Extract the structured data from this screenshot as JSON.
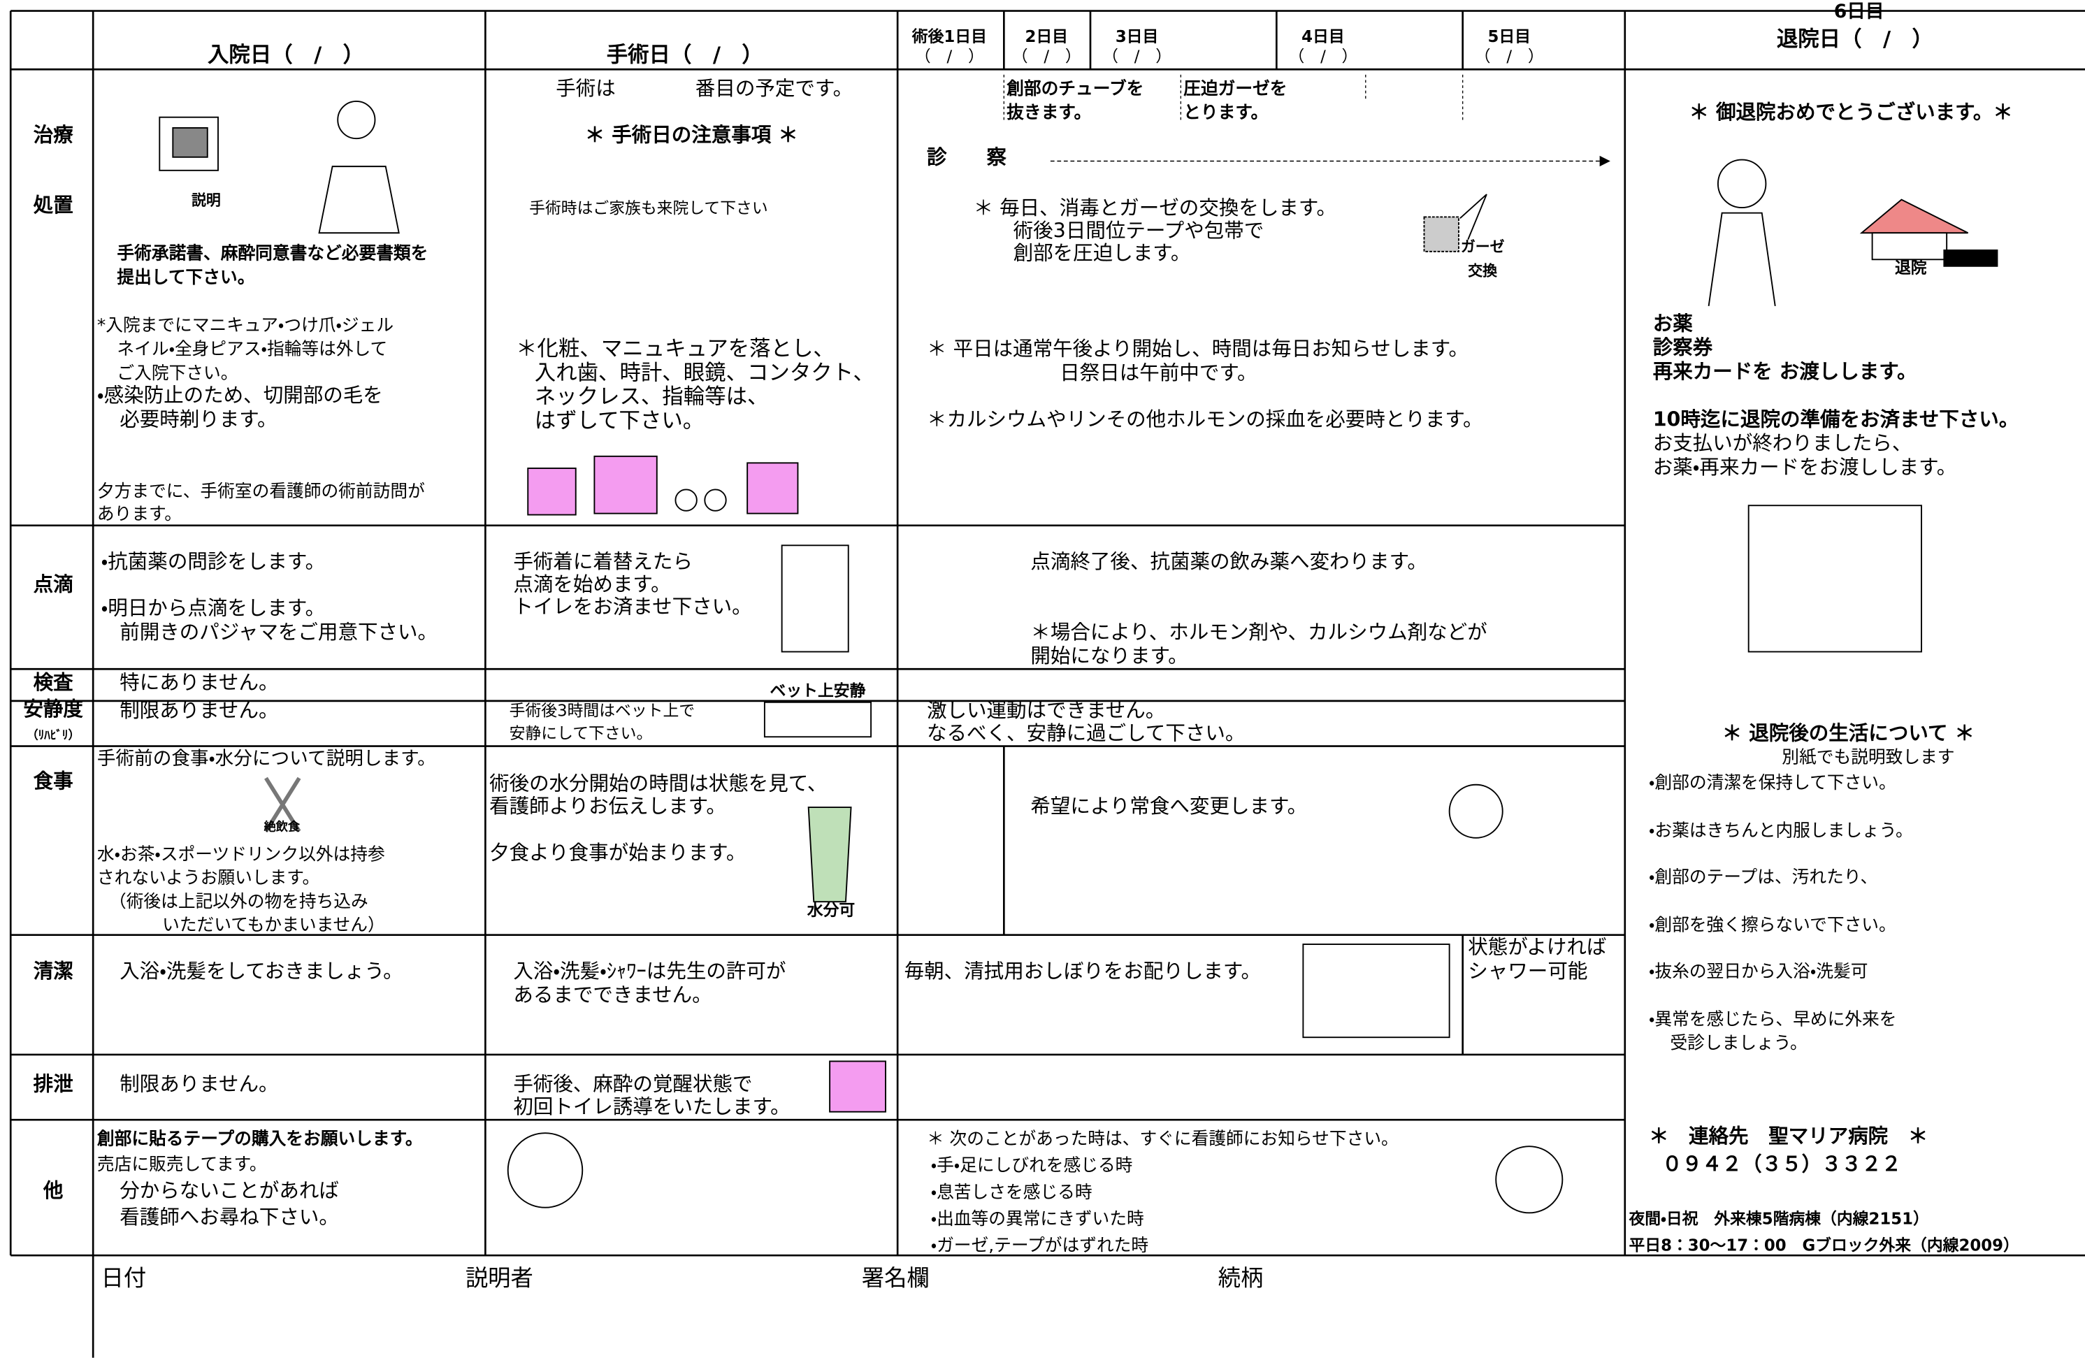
{
  "header": {
    "admission": "入院日（　/　）",
    "surgery": "手術日（　/　）",
    "post_days": [
      {
        "day": "術後1日目",
        "date": "（　/　）"
      },
      {
        "day": "2日目",
        "date": "（　/　）"
      },
      {
        "day": "3日目",
        "date": "（　/　）"
      },
      {
        "day": "4日目",
        "date": "（　/　）"
      },
      {
        "day": "5日目",
        "date": "（　/　）"
      }
    ],
    "day6": "6日目",
    "discharge": "退院日（　/　）"
  },
  "row_labels": {
    "treatment": "治療",
    "procedure": "処置",
    "drip": "点滴",
    "exam": "検査",
    "rest": "安静度",
    "rest_sub": "（ﾘﾊﾋﾞﾘ）",
    "meal": "食事",
    "hygiene": "清潔",
    "excretion": "排泄",
    "other": "他"
  },
  "treatment": {
    "admission_icon": "説明",
    "admission": [
      "手術承諾書、麻酔同意書など必要書類を",
      "提出して下さい。"
    ],
    "admission_nails": [
      "*入院までにマニキュア・つけ爪・ジェル",
      "ネイル・全身ピアス・指輪等は外して",
      "ご入院下さい。"
    ],
    "admission_hair": [
      "・感染防止のため、切開部の毛を",
      "必要時剃ります。"
    ],
    "admission_visit": [
      "夕方までに、手術室の看護師の術前訪問が",
      "あります。"
    ],
    "surgery_order": "手術は　　　　番目の予定です。",
    "surgery_notes_title": "＊ 手術日の注意事項 ＊",
    "surgery_family": "手術時はご家族も来院して下さい",
    "surgery_remove": [
      "＊化粧、マニュキュアを落とし、",
      "入れ歯、時計、眼鏡、コンタクト、",
      "ネックレス、指輪等は、",
      "はずして下さい。"
    ],
    "tube": [
      "創部のチューブを",
      "抜きます。"
    ],
    "gauze_remove": [
      "圧迫ガーゼを",
      "とります。"
    ],
    "exam": "診　　察",
    "daily": [
      "＊ 毎日、消毒とガーゼの交換をします。",
      "術後3日間位テープや包帯で",
      "創部を圧迫します。"
    ],
    "gauze_icon": [
      "ガーゼ",
      "交換"
    ],
    "time": [
      "＊ 平日は通常午後より開始し、時間は毎日お知らせします。",
      "日祭日は午前中です。"
    ],
    "blood": "＊カルシウムやリンその他ホルモンの採血を必要時とります。"
  },
  "discharge": {
    "congrats": "＊ 御退院おめでとうございます。＊",
    "icon": "退院",
    "items": [
      "お薬",
      "診察券",
      "再来カードを お渡しします。"
    ],
    "prepare": "10時迄に退院の準備をお済ませ下さい。",
    "payment": [
      "お支払いが終わりましたら、",
      "お薬・再来カードをお渡しします。"
    ],
    "life_title": "＊ 退院後の生活について ＊",
    "life_sub": "別紙でも説明致します",
    "life": [
      "・創部の清潔を保持して下さい。",
      "・お薬はきちんと内服しましょう。",
      "・創部のテープは、汚れたり、",
      "・創部を強く擦らないで下さい。",
      "・抜糸の翌日から入浴・洗髪可",
      "・異常を感じたら、早めに外来を",
      "受診しましょう。"
    ],
    "contact_title": "＊　連絡先　聖マリア病院　＊",
    "phone": "０９４２（３５）３３２２",
    "night": "夜間・日祝　外来棟5階病棟（内線2151）",
    "weekday": "平日8：30～17：00　Gブロック外来（内線2009）"
  },
  "drip": {
    "admission_1": "・抗菌薬の問診をします。",
    "admission_2": [
      "・明日から点滴をします。",
      "前開きのパジャマをご用意下さい。"
    ],
    "surgery": [
      "手術着に着替えたら",
      "点滴を始めます。",
      "トイレをお済ませ下さい。"
    ],
    "post_1": "点滴終了後、抗菌薬の飲み薬へ変わります。",
    "post_2": [
      "＊場合により、ホルモン剤や、カルシウム剤などが",
      "開始になります。"
    ]
  },
  "exam": {
    "admission": "特にありません。"
  },
  "rest": {
    "admission": "制限ありません。",
    "surgery": [
      "手術後3時間はベット上で",
      "安静にして下さい。"
    ],
    "surgery_icon": "ベット上安静",
    "post": [
      "激しい運動はできません。",
      "なるべく、安静に過ごして下さい。"
    ]
  },
  "meal": {
    "admission_1": "手術前の食事・水分について説明します。",
    "admission_icon": "絶飲食",
    "admission_2": [
      "水・お茶・スポーツドリンク以外は持参",
      "されないようお願いします。",
      "（術後は上記以外の物を持ち込み",
      "いただいてもかまいません）"
    ],
    "surgery_1": [
      "術後の水分開始の時間は状態を見て、",
      "看護師よりお伝えします。"
    ],
    "surgery_2": "夕食より食事が始まります。",
    "surgery_icon": "水分可",
    "post": "希望により常食へ変更します。"
  },
  "hygiene": {
    "admission": "入浴・洗髪をしておきましょう。",
    "surgery": [
      "入浴・洗髪・ｼｬﾜｰは先生の許可が",
      "あるまでできません。"
    ],
    "post": "毎朝、清拭用おしぼりをお配りします。",
    "day5": [
      "状態がよければ",
      "シャワー可能"
    ]
  },
  "excretion": {
    "admission": "制限ありません。",
    "surgery": [
      "手術後、麻酔の覚醒状態で",
      "初回トイレ誘導をいたします。"
    ]
  },
  "other": {
    "admission_1": "創部に貼るテープの購入をお願いします。",
    "admission_2": "売店に販売してます。",
    "admission_3": [
      "分からないことがあれば",
      "看護師へお尋ね下さい。"
    ],
    "post_title": "＊ 次のことがあった時は、すぐに看護師にお知らせ下さい。",
    "post": [
      "・手・足にしびれを感じる時",
      "・息苦しさを感じる時",
      "・出血等の異常にきずいた時",
      "・ガーゼ,テープがはずれた時"
    ]
  },
  "signature": {
    "date": "日付",
    "explainer": "説明者",
    "sign": "署名欄",
    "relation": "続柄"
  }
}
